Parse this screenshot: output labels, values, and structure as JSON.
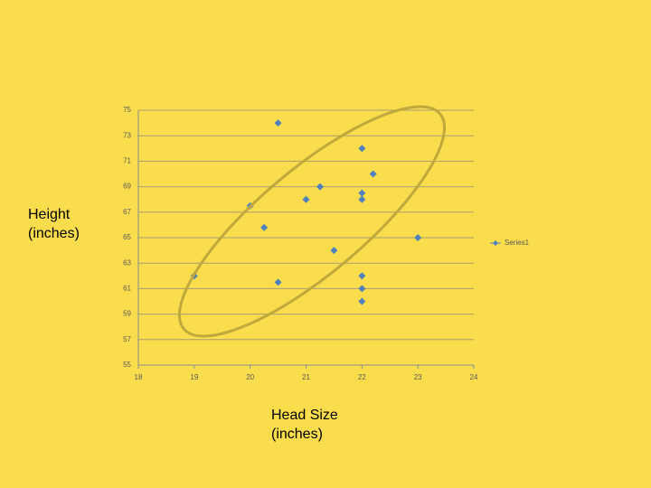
{
  "chart_data": {
    "type": "scatter",
    "x": [
      20.5,
      22,
      22.2,
      21.25,
      22,
      22,
      21,
      20,
      20.25,
      23,
      21.5,
      19,
      22,
      20.5,
      22,
      22
    ],
    "series": [
      {
        "name": "Series1",
        "color": "#4f81bd",
        "values": [
          74,
          72,
          70,
          69,
          68.5,
          68,
          68,
          67.5,
          65.8,
          65,
          64,
          62,
          62,
          61.5,
          61,
          60
        ]
      }
    ],
    "xlim": [
      18,
      24
    ],
    "ylim": [
      55,
      75
    ],
    "xticks": [
      18,
      19,
      20,
      21,
      22,
      23,
      24
    ],
    "yticks": [
      55,
      57,
      59,
      61,
      63,
      65,
      67,
      69,
      71,
      73,
      75
    ],
    "grid": true,
    "legend": "right",
    "y_label": "Height (inches)",
    "x_label": "Head Size (inches)"
  }
}
